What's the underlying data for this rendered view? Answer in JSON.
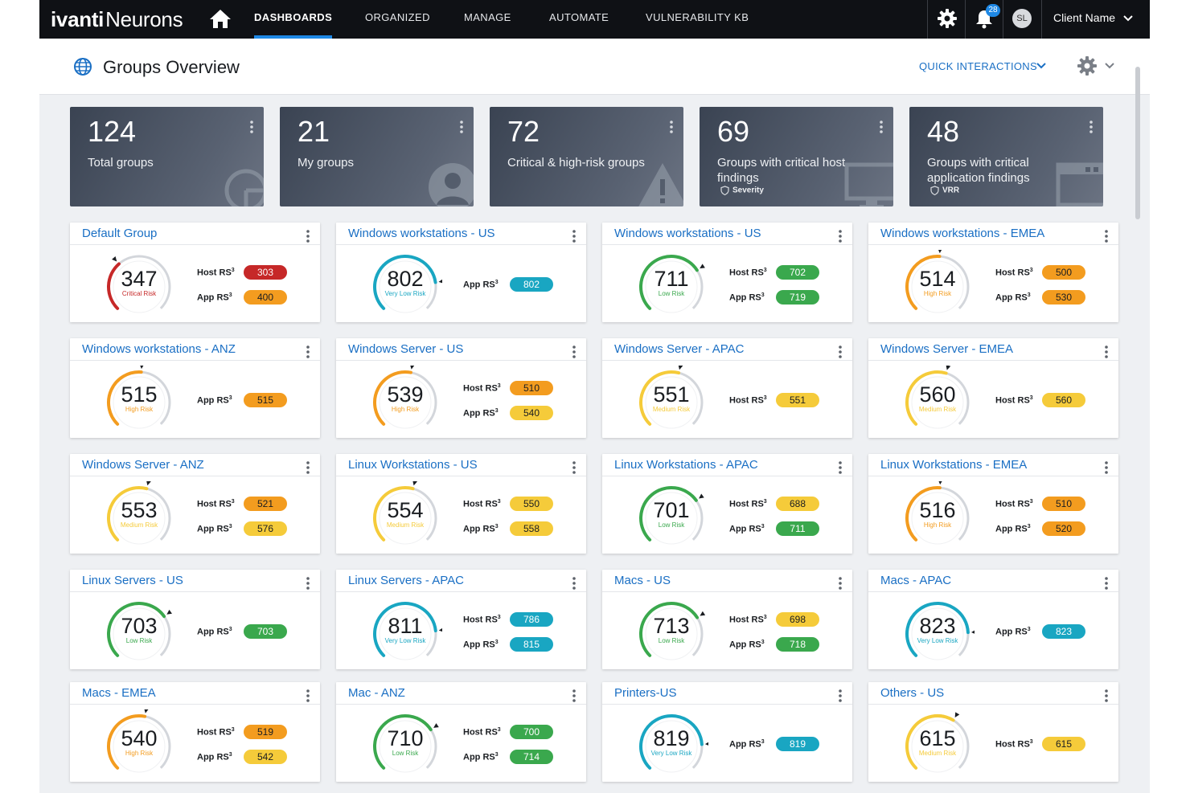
{
  "nav": {
    "brand_bold": "ivanti",
    "brand_light": "Neurons",
    "tabs": [
      "DASHBOARDS",
      "ORGANIZED",
      "MANAGE",
      "AUTOMATE",
      "VULNERABILITY KB"
    ],
    "active_tab": "DASHBOARDS",
    "notification_count": "28",
    "avatar_initials": "SL",
    "client_name": "Client Name"
  },
  "header": {
    "title": "Groups Overview",
    "quick_interactions": "QUICK INTERACTIONS"
  },
  "stats": [
    {
      "value": "124",
      "label": "Total groups",
      "icon": "pie-chart-icon",
      "sub": ""
    },
    {
      "value": "21",
      "label": "My groups",
      "icon": "person-icon",
      "sub": ""
    },
    {
      "value": "72",
      "label": "Critical & high-risk groups",
      "icon": "warning-icon",
      "sub": ""
    },
    {
      "value": "69",
      "label": "Groups with critical host findings",
      "icon": "monitor-icon",
      "sub": "Severity"
    },
    {
      "value": "48",
      "label": "Groups with critical application findings",
      "icon": "app-window-icon",
      "sub": "VRR"
    }
  ],
  "cards": [
    {
      "name": "Default Group",
      "score": "347",
      "risk": "Critical Risk",
      "host": "303",
      "app": "400"
    },
    {
      "name": "Windows workstations - US",
      "score": "802",
      "risk": "Very Low Risk",
      "host": "",
      "app": "802"
    },
    {
      "name": "Windows workstations - US",
      "score": "711",
      "risk": "Low Risk",
      "host": "702",
      "app": "719"
    },
    {
      "name": "Windows workstations - EMEA",
      "score": "514",
      "risk": "High Risk",
      "host": "500",
      "app": "530"
    },
    {
      "name": "Windows workstations - ANZ",
      "score": "515",
      "risk": "High Risk",
      "host": "",
      "app": "515"
    },
    {
      "name": "Windows Server - US",
      "score": "539",
      "risk": "High Risk",
      "host": "510",
      "app": "540"
    },
    {
      "name": "Windows Server - APAC",
      "score": "551",
      "risk": "Medium Risk",
      "host": "551",
      "app": ""
    },
    {
      "name": "Windows Server - EMEA",
      "score": "560",
      "risk": "Medium Risk",
      "host": "560",
      "app": ""
    },
    {
      "name": "Windows Server - ANZ",
      "score": "553",
      "risk": "Medium Risk",
      "host": "521",
      "app": "576"
    },
    {
      "name": "Linux Workstations - US",
      "score": "554",
      "risk": "Medium Risk",
      "host": "550",
      "app": "558"
    },
    {
      "name": "Linux Workstations - APAC",
      "score": "701",
      "risk": "Low Risk",
      "host": "688",
      "app": "711"
    },
    {
      "name": "Linux Workstations - EMEA",
      "score": "516",
      "risk": "High Risk",
      "host": "510",
      "app": "520"
    },
    {
      "name": "Linux Servers - US",
      "score": "703",
      "risk": "Low Risk",
      "host": "",
      "app": "703"
    },
    {
      "name": "Linux Servers - APAC",
      "score": "811",
      "risk": "Very Low Risk",
      "host": "786",
      "app": "815"
    },
    {
      "name": "Macs - US",
      "score": "713",
      "risk": "Low Risk",
      "host": "698",
      "app": "718"
    },
    {
      "name": "Macs - APAC",
      "score": "823",
      "risk": "Very Low Risk",
      "host": "",
      "app": "823"
    },
    {
      "name": "Macs - EMEA",
      "score": "540",
      "risk": "High Risk",
      "host": "519",
      "app": "542"
    },
    {
      "name": "Mac - ANZ",
      "score": "710",
      "risk": "Low Risk",
      "host": "700",
      "app": "714"
    },
    {
      "name": "Printers-US",
      "score": "819",
      "risk": "Very Low Risk",
      "host": "",
      "app": "819"
    },
    {
      "name": "Others - US",
      "score": "615",
      "risk": "Medium Risk",
      "host": "615",
      "app": ""
    }
  ],
  "labels": {
    "host_rs": "Host RS",
    "app_rs": "App RS",
    "superscript": "3"
  },
  "colors": {
    "critical": "#c62828",
    "high": "#f39c1f",
    "medium": "#f5cb3a",
    "low": "#3aa84d",
    "very_low": "#19a6c2",
    "link_blue": "#1a6fc4",
    "nav_bg": "#0f1115"
  }
}
